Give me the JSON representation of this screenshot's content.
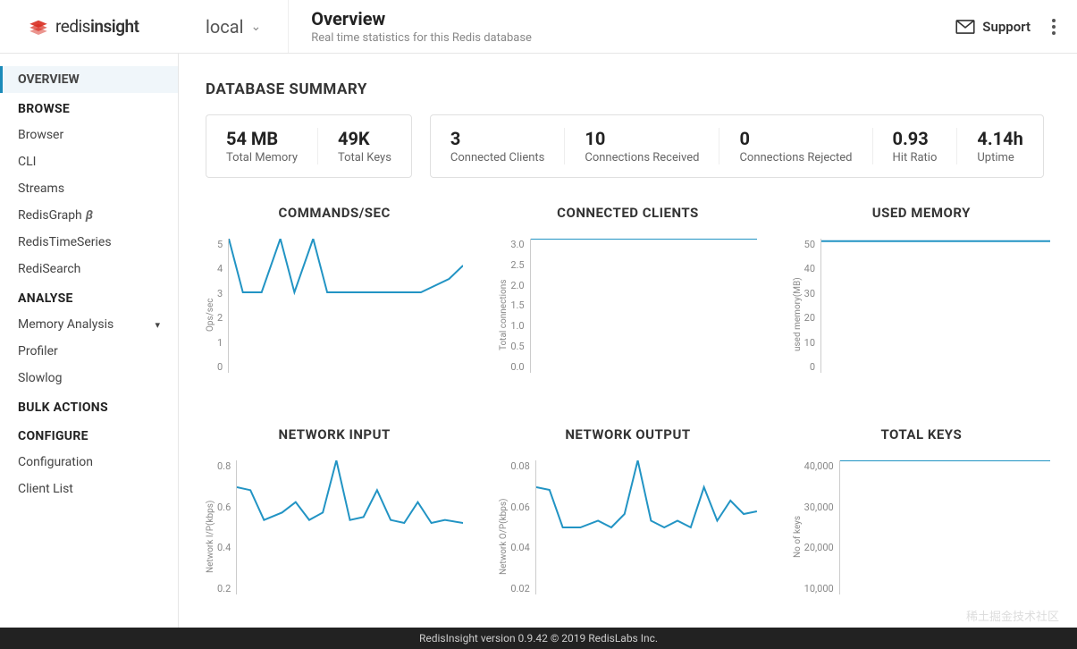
{
  "brand": {
    "name_light": "redis",
    "name_bold": "insight"
  },
  "db_selector": {
    "name": "local"
  },
  "header": {
    "title": "Overview",
    "subtitle": "Real time statistics for this Redis database"
  },
  "support_label": "Support",
  "sidebar": {
    "sections": [
      {
        "title": "OVERVIEW",
        "items": [],
        "active": true
      },
      {
        "title": "BROWSE",
        "items": [
          {
            "label": "Browser"
          },
          {
            "label": "CLI"
          },
          {
            "label": "Streams"
          },
          {
            "label": "RedisGraph",
            "beta": true
          },
          {
            "label": "RedisTimeSeries"
          },
          {
            "label": "RediSearch"
          }
        ]
      },
      {
        "title": "ANALYSE",
        "items": [
          {
            "label": "Memory Analysis",
            "expand": true
          },
          {
            "label": "Profiler"
          },
          {
            "label": "Slowlog"
          }
        ]
      },
      {
        "title": "BULK ACTIONS",
        "items": []
      },
      {
        "title": "CONFIGURE",
        "items": [
          {
            "label": "Configuration"
          },
          {
            "label": "Client List"
          }
        ]
      }
    ]
  },
  "summary_title": "DATABASE SUMMARY",
  "summary_cards": [
    [
      {
        "value": "54 MB",
        "label": "Total Memory"
      },
      {
        "value": "49K",
        "label": "Total Keys"
      }
    ],
    [
      {
        "value": "3",
        "label": "Connected Clients"
      },
      {
        "value": "10",
        "label": "Connections Received"
      },
      {
        "value": "0",
        "label": "Connections Rejected"
      },
      {
        "value": "0.93",
        "label": "Hit Ratio"
      },
      {
        "value": "4.14h",
        "label": "Uptime"
      }
    ]
  ],
  "charts": [
    {
      "title": "COMMANDS/SEC",
      "axis": "Ops/sec",
      "ylim": [
        0,
        5
      ],
      "yticks": [
        "5",
        "4",
        "3",
        "2",
        "1",
        "0"
      ],
      "color": "#2294c4",
      "line_width": 2,
      "points": [
        [
          0,
          5
        ],
        [
          6,
          3
        ],
        [
          14,
          3
        ],
        [
          22,
          5
        ],
        [
          28,
          3
        ],
        [
          36,
          5
        ],
        [
          42,
          3
        ],
        [
          50,
          3
        ],
        [
          62,
          3
        ],
        [
          70,
          3
        ],
        [
          82,
          3
        ],
        [
          94,
          3.5
        ],
        [
          100,
          4
        ]
      ]
    },
    {
      "title": "CONNECTED CLIENTS",
      "axis": "Total connections",
      "ylim": [
        0,
        3
      ],
      "yticks": [
        "3.0",
        "2.5",
        "2.0",
        "1.5",
        "1.0",
        "0.5",
        "0.0"
      ],
      "color": "#2294c4",
      "line_width": 2,
      "points": [
        [
          0,
          3
        ],
        [
          100,
          3
        ]
      ]
    },
    {
      "title": "USED MEMORY",
      "axis": "used memory(MB)",
      "ylim": [
        0,
        55
      ],
      "yticks": [
        "50",
        "40",
        "30",
        "20",
        "10",
        "0"
      ],
      "color": "#2294c4",
      "line_width": 2,
      "points": [
        [
          0,
          54
        ],
        [
          100,
          54
        ]
      ]
    },
    {
      "title": "NETWORK INPUT",
      "axis": "Network I/P(kbps)",
      "ylim": [
        0,
        0.9
      ],
      "yticks": [
        "0.8",
        "0.6",
        "0.4",
        "0.2"
      ],
      "color": "#2294c4",
      "line_width": 2,
      "points": [
        [
          0,
          0.72
        ],
        [
          6,
          0.7
        ],
        [
          12,
          0.5
        ],
        [
          20,
          0.55
        ],
        [
          26,
          0.62
        ],
        [
          32,
          0.5
        ],
        [
          38,
          0.55
        ],
        [
          44,
          0.9
        ],
        [
          50,
          0.5
        ],
        [
          56,
          0.52
        ],
        [
          62,
          0.7
        ],
        [
          68,
          0.5
        ],
        [
          74,
          0.48
        ],
        [
          80,
          0.62
        ],
        [
          86,
          0.48
        ],
        [
          92,
          0.5
        ],
        [
          100,
          0.48
        ]
      ]
    },
    {
      "title": "NETWORK OUTPUT",
      "axis": "Network O/P(kbps)",
      "ylim": [
        0,
        0.1
      ],
      "yticks": [
        "0.08",
        "0.06",
        "0.04",
        "0.02"
      ],
      "color": "#2294c4",
      "line_width": 2,
      "points": [
        [
          0,
          0.08
        ],
        [
          6,
          0.078
        ],
        [
          12,
          0.05
        ],
        [
          20,
          0.05
        ],
        [
          28,
          0.055
        ],
        [
          34,
          0.05
        ],
        [
          40,
          0.06
        ],
        [
          46,
          0.1
        ],
        [
          52,
          0.055
        ],
        [
          58,
          0.05
        ],
        [
          64,
          0.055
        ],
        [
          70,
          0.05
        ],
        [
          76,
          0.08
        ],
        [
          82,
          0.055
        ],
        [
          88,
          0.07
        ],
        [
          94,
          0.06
        ],
        [
          100,
          0.062
        ]
      ]
    },
    {
      "title": "TOTAL KEYS",
      "axis": "No of keys",
      "ylim": [
        0,
        49000
      ],
      "yticks": [
        "40,000",
        "30,000",
        "20,000",
        "10,000"
      ],
      "color": "#2294c4",
      "line_width": 2,
      "points": [
        [
          0,
          49000
        ],
        [
          100,
          49000
        ]
      ]
    }
  ],
  "footer": "RedisInsight version 0.9.42 © 2019 RedisLabs Inc.",
  "watermark": "稀土掘金技术社区"
}
